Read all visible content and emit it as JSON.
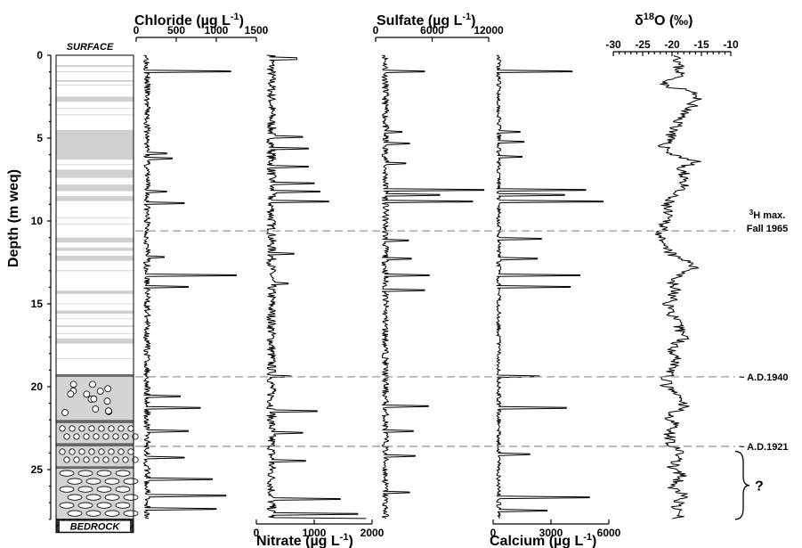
{
  "chart_data": {
    "type": "line",
    "orientation": "depth-profile",
    "ylabel": "Depth (m weq)",
    "ylim": [
      0,
      28
    ],
    "yticks": [
      0,
      5,
      10,
      15,
      20,
      25
    ],
    "stratigraphy": {
      "top_label": "SURFACE",
      "bottom_label": "BEDROCK",
      "units": [
        {
          "from": 0,
          "to": 19.3,
          "kind": "ice-with-layers"
        },
        {
          "from": 19.3,
          "to": 22.0,
          "kind": "circles"
        },
        {
          "from": 22.2,
          "to": 23.4,
          "kind": "small-circles"
        },
        {
          "from": 23.6,
          "to": 24.8,
          "kind": "small-circles"
        },
        {
          "from": 24.9,
          "to": 28.0,
          "kind": "ovals"
        },
        {
          "from": 28.0,
          "to": 28.8,
          "kind": "bedrock"
        }
      ],
      "grey_bands": [
        [
          0.6,
          0.7
        ],
        [
          1.5,
          1.6
        ],
        [
          2.5,
          2.8
        ],
        [
          4.5,
          6.3
        ],
        [
          6.9,
          7.4
        ],
        [
          7.8,
          8.2
        ],
        [
          8.5,
          8.8
        ],
        [
          11.0,
          11.3
        ],
        [
          11.6,
          11.8
        ],
        [
          12.1,
          12.4
        ],
        [
          14.2,
          14.4
        ],
        [
          15.4,
          15.6
        ],
        [
          16.3,
          16.4
        ],
        [
          17.1,
          17.4
        ]
      ]
    },
    "reference_lines": [
      {
        "depth": 10.6,
        "label": "³H max.",
        "label2": "Fall 1965"
      },
      {
        "depth": 19.4,
        "label": "~ A.D.1940"
      },
      {
        "depth": 23.6,
        "label": "~ A.D.1921"
      }
    ],
    "unknown_marker": {
      "from": 23.9,
      "to": 28.0,
      "label": "?"
    },
    "series": [
      {
        "name": "Chloride",
        "title": "Chloride (µg L⁻¹)",
        "axis": "top",
        "range": [
          0,
          1500
        ],
        "ticks": [
          0,
          500,
          1000,
          1500
        ],
        "baseline": 120,
        "amp": 80,
        "seed": 3,
        "spikes": [
          [
            1.0,
            1180
          ],
          [
            5.9,
            380
          ],
          [
            6.2,
            450
          ],
          [
            8.2,
            380
          ],
          [
            8.9,
            600
          ],
          [
            12.2,
            350
          ],
          [
            13.3,
            1250
          ],
          [
            14.0,
            650
          ],
          [
            20.6,
            550
          ],
          [
            21.3,
            800
          ],
          [
            22.7,
            650
          ],
          [
            24.3,
            600
          ],
          [
            25.6,
            950
          ],
          [
            26.6,
            1120
          ],
          [
            27.4,
            1000
          ]
        ]
      },
      {
        "name": "Nitrate",
        "title": "Nitrate (µg L⁻¹)",
        "axis": "bottom",
        "range": [
          0,
          2000
        ],
        "ticks": [
          0,
          1000,
          2000
        ],
        "baseline": 230,
        "amp": 160,
        "seed": 7,
        "spikes": [
          [
            0.2,
            700
          ],
          [
            4.9,
            800
          ],
          [
            5.6,
            900
          ],
          [
            6.7,
            900
          ],
          [
            7.7,
            1000
          ],
          [
            8.2,
            1100
          ],
          [
            8.8,
            1250
          ],
          [
            12.0,
            650
          ],
          [
            13.8,
            550
          ],
          [
            19.4,
            600
          ],
          [
            21.5,
            1050
          ],
          [
            22.8,
            800
          ],
          [
            24.5,
            850
          ],
          [
            26.8,
            1450
          ],
          [
            27.7,
            1750
          ],
          [
            28.0,
            1900
          ]
        ]
      },
      {
        "name": "Sulfate",
        "title": "Sulfate (µg L⁻¹)",
        "axis": "top",
        "range": [
          0,
          12000
        ],
        "ticks": [
          0,
          6000,
          12000
        ],
        "baseline": 900,
        "amp": 700,
        "seed": 11,
        "spikes": [
          [
            1.0,
            5200
          ],
          [
            4.6,
            2800
          ],
          [
            5.3,
            3600
          ],
          [
            6.5,
            3200
          ],
          [
            8.1,
            11500
          ],
          [
            8.4,
            6800
          ],
          [
            8.8,
            10300
          ],
          [
            11.2,
            3500
          ],
          [
            12.3,
            3800
          ],
          [
            13.3,
            5700
          ],
          [
            14.2,
            5200
          ],
          [
            21.2,
            5600
          ],
          [
            22.7,
            4000
          ],
          [
            24.2,
            4200
          ],
          [
            26.4,
            3600
          ]
        ]
      },
      {
        "name": "Calcium",
        "title": "Calcium (µg L⁻¹)",
        "axis": "bottom",
        "range": [
          0,
          6000
        ],
        "ticks": [
          0,
          3000,
          6000
        ],
        "baseline": 250,
        "amp": 220,
        "seed": 19,
        "spikes": [
          [
            1.0,
            4100
          ],
          [
            4.6,
            1400
          ],
          [
            5.2,
            1600
          ],
          [
            6.1,
            1500
          ],
          [
            8.1,
            4800
          ],
          [
            8.4,
            3700
          ],
          [
            8.8,
            5700
          ],
          [
            11.1,
            2500
          ],
          [
            12.3,
            2300
          ],
          [
            13.3,
            4500
          ],
          [
            14.0,
            4000
          ],
          [
            19.4,
            2400
          ],
          [
            21.3,
            3800
          ],
          [
            24.1,
            1900
          ],
          [
            26.7,
            5000
          ],
          [
            27.5,
            2800
          ]
        ]
      },
      {
        "name": "d18O",
        "title_prefix": "δ",
        "title_sup": "18",
        "title_suffix": "O (‰)",
        "axis": "top",
        "range": [
          -30,
          -10
        ],
        "ticks": [
          -30,
          -25,
          -20,
          -15,
          -10
        ],
        "profile": [
          [
            0.0,
            -18.5
          ],
          [
            0.6,
            -19
          ],
          [
            1.2,
            -18.5
          ],
          [
            1.8,
            -21.5
          ],
          [
            2.2,
            -16.5
          ],
          [
            2.6,
            -16
          ],
          [
            3.0,
            -16.5
          ],
          [
            3.6,
            -18.5
          ],
          [
            4.2,
            -19
          ],
          [
            4.8,
            -20
          ],
          [
            5.4,
            -21.5
          ],
          [
            6.0,
            -20
          ],
          [
            6.4,
            -15.5
          ],
          [
            6.8,
            -19
          ],
          [
            7.4,
            -17.5
          ],
          [
            8.0,
            -18.5
          ],
          [
            8.6,
            -20.5
          ],
          [
            9.2,
            -21
          ],
          [
            10.0,
            -21
          ],
          [
            10.6,
            -21.5
          ],
          [
            11.2,
            -22.5
          ],
          [
            11.7,
            -21
          ],
          [
            12.2,
            -19.5
          ],
          [
            12.6,
            -16
          ],
          [
            13.0,
            -17
          ],
          [
            13.6,
            -20
          ],
          [
            14.2,
            -19.5
          ],
          [
            15.0,
            -20.5
          ],
          [
            15.6,
            -20
          ],
          [
            16.4,
            -19
          ],
          [
            17.0,
            -17.5
          ],
          [
            17.6,
            -20
          ],
          [
            18.2,
            -19
          ],
          [
            18.8,
            -19.5
          ],
          [
            19.4,
            -21
          ],
          [
            20.0,
            -21
          ],
          [
            20.6,
            -19
          ],
          [
            21.2,
            -18
          ],
          [
            21.8,
            -20.5
          ],
          [
            22.4,
            -19.5
          ],
          [
            23.0,
            -20.5
          ],
          [
            23.6,
            -19.8
          ],
          [
            24.2,
            -18.5
          ],
          [
            24.8,
            -20
          ],
          [
            25.4,
            -18.5
          ],
          [
            26.0,
            -20
          ],
          [
            26.6,
            -18
          ],
          [
            27.2,
            -19.5
          ],
          [
            27.9,
            -19
          ]
        ],
        "noise": 1.1,
        "seed": 23
      }
    ]
  }
}
